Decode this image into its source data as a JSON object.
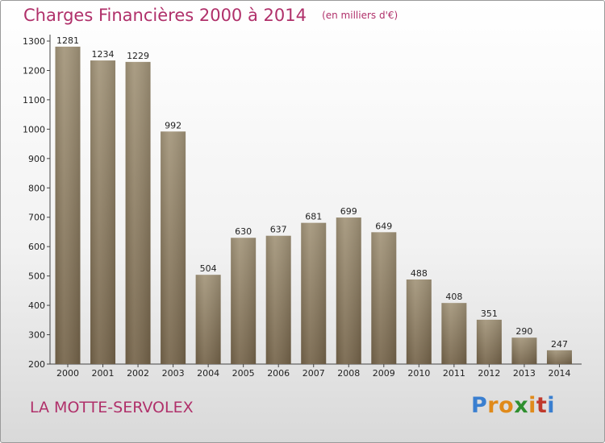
{
  "chart_data": {
    "type": "bar",
    "title": "Charges Financières 2000 à 2014",
    "subtitle": "(en milliers d'€)",
    "categories": [
      "2000",
      "2001",
      "2002",
      "2003",
      "2004",
      "2005",
      "2006",
      "2007",
      "2008",
      "2009",
      "2010",
      "2011",
      "2012",
      "2013",
      "2014"
    ],
    "values": [
      1281,
      1234,
      1229,
      992,
      504,
      630,
      637,
      681,
      699,
      649,
      488,
      408,
      351,
      290,
      247
    ],
    "ylim": [
      200,
      1300
    ],
    "yticks": [
      200,
      300,
      400,
      500,
      600,
      700,
      800,
      900,
      1000,
      1100,
      1200,
      1300
    ],
    "grid": false,
    "bar_color": "#8c7c5f"
  },
  "footer": {
    "commune": "LA MOTTE-SERVOLEX"
  },
  "logo": {
    "letters": [
      "P",
      "r",
      "o",
      "x",
      "i",
      "t",
      "i"
    ],
    "colors": [
      "#3a7fd0",
      "#e08a1a",
      "#e08a1a",
      "#2f8f2f",
      "#e08a1a",
      "#c0392b",
      "#3a7fd0"
    ]
  },
  "colors": {
    "title": "#b0306a",
    "axis": "#222222"
  }
}
